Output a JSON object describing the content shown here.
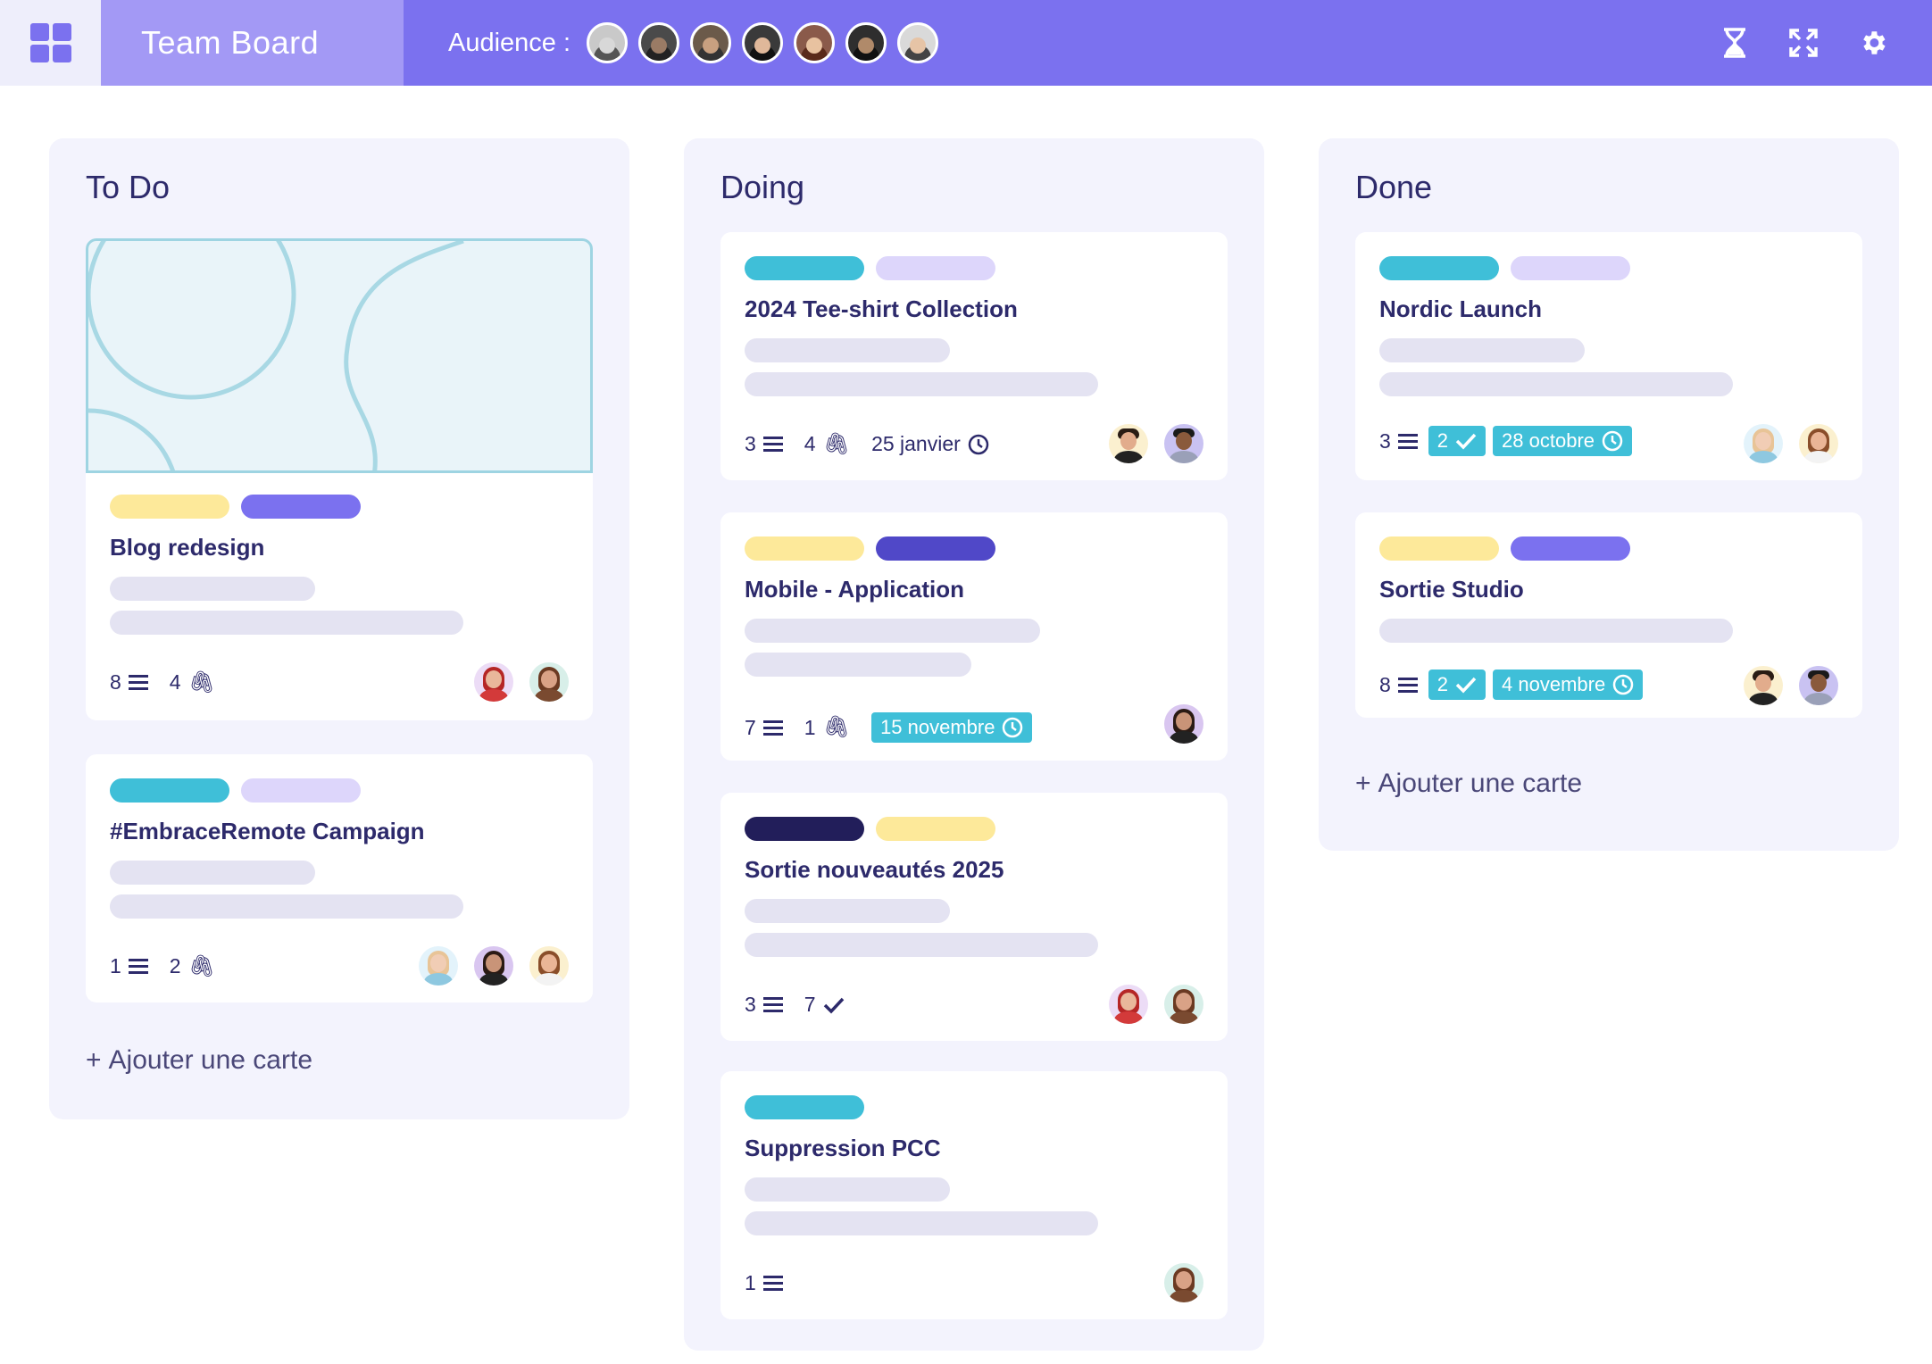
{
  "header": {
    "board_title": "Team Board",
    "audience_label": "Audience :",
    "audience_members": [
      {
        "name": "member-1"
      },
      {
        "name": "member-2"
      },
      {
        "name": "member-3"
      },
      {
        "name": "member-4"
      },
      {
        "name": "member-5"
      },
      {
        "name": "member-6"
      },
      {
        "name": "member-7"
      }
    ],
    "icons": [
      "grid-icon",
      "hourglass-icon",
      "fullscreen-icon",
      "gear-icon"
    ]
  },
  "colors": {
    "accent": "#7b71ef",
    "title_box": "#a399f5",
    "tag_cyan": "#3fbfd8",
    "tag_lilac": "#ddd6fb",
    "tag_yellow": "#fde99a",
    "tag_purple": "#7b71ef",
    "tag_indigo": "#5048c8",
    "tag_navy": "#221e5a"
  },
  "columns": [
    {
      "title": "To Do",
      "add_label": "Ajouter une carte",
      "cards": [
        {
          "title": "Blog redesign",
          "tags": [
            "yellow",
            "purple"
          ],
          "descriptions": "8",
          "attachments": "4"
        },
        {
          "title": "#EmbraceRemote Campaign",
          "tags": [
            "cyan",
            "lilac"
          ],
          "descriptions": "1",
          "attachments": "2"
        }
      ]
    },
    {
      "title": "Doing",
      "cards": [
        {
          "title": "2024 Tee-shirt Collection",
          "tags": [
            "cyan",
            "lilac"
          ],
          "descriptions": "3",
          "attachments": "4",
          "due": "25 janvier"
        },
        {
          "title": "Mobile - Application",
          "tags": [
            "yellow",
            "indigo"
          ],
          "descriptions": "7",
          "attachments": "1",
          "due": "15 novembre"
        },
        {
          "title": "Sortie nouveautés 2025",
          "tags": [
            "navy",
            "yellow"
          ],
          "descriptions": "3",
          "checks": "7"
        },
        {
          "title": "Suppression PCC",
          "tags": [
            "cyan"
          ],
          "descriptions": "1"
        }
      ]
    },
    {
      "title": "Done",
      "add_label": "Ajouter une carte",
      "cards": [
        {
          "title": "Nordic Launch",
          "tags": [
            "cyan",
            "lilac"
          ],
          "descriptions": "3",
          "checks": "2",
          "due": "28 octobre"
        },
        {
          "title": "Sortie Studio",
          "tags": [
            "yellow",
            "purple"
          ],
          "descriptions": "8",
          "checks": "2",
          "due": "4 novembre"
        }
      ]
    }
  ]
}
